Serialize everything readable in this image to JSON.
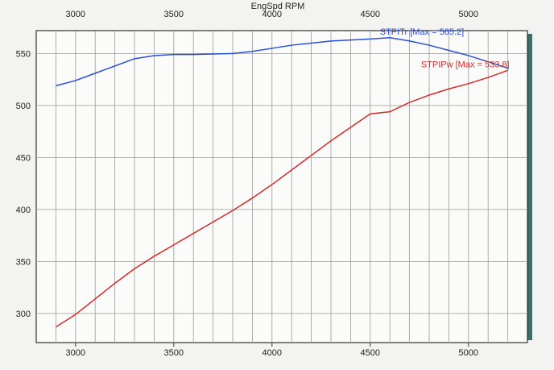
{
  "chart_data": {
    "type": "line",
    "title": "EngSpd RPM",
    "xlabel": "EngSpd RPM",
    "ylabel": "",
    "xlim": [
      2800,
      5300
    ],
    "ylim": [
      272,
      572
    ],
    "grid": true,
    "x_ticks": [
      3000,
      3500,
      4000,
      4500,
      5000
    ],
    "x_tick_labels": [
      "3000",
      "3500",
      "4000",
      "4500",
      "5000"
    ],
    "y_ticks": [
      300,
      350,
      400,
      450,
      500,
      550
    ],
    "y_tick_labels": [
      "300",
      "350",
      "400",
      "450",
      "500",
      "550"
    ],
    "x": [
      2900,
      3000,
      3100,
      3200,
      3300,
      3400,
      3500,
      3600,
      3700,
      3800,
      3900,
      4000,
      4100,
      4200,
      4300,
      4400,
      4500,
      4600,
      4700,
      4800,
      4900,
      5000,
      5100,
      5200
    ],
    "series": [
      {
        "name": "STPITr",
        "legend": "STPITr [Max = 565.2]",
        "color": "#2a4fd6",
        "values": [
          519,
          524,
          531,
          538,
          545,
          548,
          549,
          549,
          549.5,
          550,
          552,
          555,
          558,
          560,
          562,
          563,
          564,
          565.2,
          562,
          558,
          553,
          548,
          542,
          536
        ]
      },
      {
        "name": "STPIPw",
        "legend": "STPIPw [Max = 533.8]",
        "color": "#d42a2a",
        "values": [
          287,
          299,
          314,
          329,
          343,
          355,
          366,
          377,
          388,
          399,
          411,
          424,
          438,
          452,
          466,
          479,
          492,
          494,
          503,
          510,
          516,
          521,
          527,
          533.8
        ]
      }
    ]
  }
}
